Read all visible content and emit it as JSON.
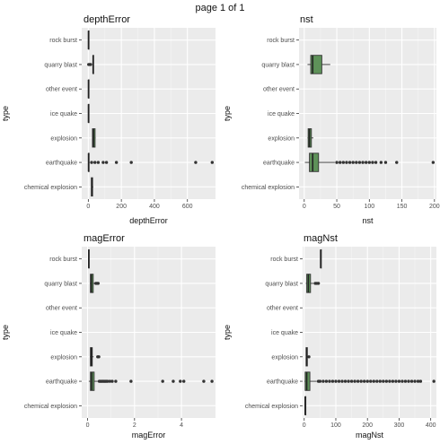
{
  "page_title": "page 1 of 1",
  "colors": {
    "box_fill": "#5e9259",
    "panel_bg": "#ebebeb",
    "grid": "#ffffff",
    "outlier": "#333333"
  },
  "chart_data": [
    {
      "type": "box",
      "orientation": "horizontal",
      "title": "depthError",
      "xlabel": "depthError",
      "ylabel": "type",
      "xlim": [
        -40,
        770
      ],
      "xticks": [
        0,
        200,
        400,
        600
      ],
      "categories": [
        "chemical explosion",
        "earthquake",
        "explosion",
        "ice quake",
        "other event",
        "quarry blast",
        "rock burst"
      ],
      "boxes": [
        {
          "category": "chemical explosion",
          "min": 18,
          "q1": 18,
          "median": 22,
          "q3": 26,
          "max": 30,
          "outliers": []
        },
        {
          "category": "earthquake",
          "min": 0,
          "q1": 0.5,
          "median": 1.2,
          "q3": 3,
          "max": 8,
          "outliers": [
            20,
            40,
            60,
            90,
            110,
            170,
            260,
            650,
            750
          ]
        },
        {
          "category": "explosion",
          "min": 25,
          "q1": 25,
          "median": 31,
          "q3": 41,
          "max": 44,
          "outliers": []
        },
        {
          "category": "ice quake",
          "min": 0,
          "q1": 0,
          "median": 1,
          "q3": 2,
          "max": 6,
          "outliers": []
        },
        {
          "category": "other event",
          "min": 0,
          "q1": 0,
          "median": 1,
          "q3": 2,
          "max": 4,
          "outliers": []
        },
        {
          "category": "quarry blast",
          "min": 28,
          "q1": 28,
          "median": 29,
          "q3": 30,
          "max": 31,
          "outliers": [
            2,
            8,
            14
          ]
        },
        {
          "category": "rock burst",
          "min": 0,
          "q1": 0,
          "median": 1,
          "q3": 2,
          "max": 3,
          "outliers": []
        }
      ]
    },
    {
      "type": "box",
      "orientation": "horizontal",
      "title": "nst",
      "xlabel": "nst",
      "ylabel": "type",
      "xlim": [
        -8,
        203
      ],
      "xticks": [
        0,
        50,
        100,
        150,
        200
      ],
      "categories": [
        "chemical explosion",
        "earthquake",
        "explosion",
        "ice quake",
        "other event",
        "quarry blast",
        "rock burst"
      ],
      "boxes": [
        {
          "category": "chemical explosion",
          "min": null,
          "q1": null,
          "median": null,
          "q3": null,
          "max": null,
          "outliers": []
        },
        {
          "category": "earthquake",
          "min": 1,
          "q1": 8,
          "median": 13,
          "q3": 22,
          "max": 47,
          "outliers": [
            50,
            55,
            60,
            65,
            70,
            75,
            80,
            85,
            90,
            95,
            100,
            105,
            110,
            118,
            125,
            142,
            198
          ]
        },
        {
          "category": "explosion",
          "min": 5,
          "q1": 6,
          "median": 8,
          "q3": 11,
          "max": 14,
          "outliers": []
        },
        {
          "category": "ice quake",
          "min": null,
          "q1": null,
          "median": null,
          "q3": null,
          "max": null,
          "outliers": []
        },
        {
          "category": "other event",
          "min": null,
          "q1": null,
          "median": null,
          "q3": null,
          "max": null,
          "outliers": []
        },
        {
          "category": "quarry blast",
          "min": 5,
          "q1": 10,
          "median": 13,
          "q3": 27,
          "max": 40,
          "outliers": []
        },
        {
          "category": "rock burst",
          "min": null,
          "q1": null,
          "median": null,
          "q3": null,
          "max": null,
          "outliers": []
        }
      ]
    },
    {
      "type": "box",
      "orientation": "horizontal",
      "title": "magError",
      "xlabel": "magError",
      "ylabel": "type",
      "xlim": [
        -0.25,
        5.45
      ],
      "xticks": [
        0,
        2,
        4
      ],
      "categories": [
        "chemical explosion",
        "earthquake",
        "explosion",
        "ice quake",
        "other event",
        "quarry blast",
        "rock burst"
      ],
      "boxes": [
        {
          "category": "chemical explosion",
          "min": null,
          "q1": null,
          "median": null,
          "q3": null,
          "max": null,
          "outliers": []
        },
        {
          "category": "earthquake",
          "min": 0.05,
          "q1": 0.12,
          "median": 0.18,
          "q3": 0.28,
          "max": 0.45,
          "outliers": [
            0.5,
            0.55,
            0.6,
            0.65,
            0.7,
            0.75,
            0.8,
            0.85,
            0.95,
            1.05,
            1.2,
            1.85,
            3.2,
            3.65,
            3.95,
            4.1,
            4.95,
            5.3
          ]
        },
        {
          "category": "explosion",
          "min": 0.1,
          "q1": 0.12,
          "median": 0.16,
          "q3": 0.2,
          "max": 0.26,
          "outliers": [
            0.43,
            0.48
          ]
        },
        {
          "category": "ice quake",
          "min": null,
          "q1": null,
          "median": null,
          "q3": null,
          "max": null,
          "outliers": []
        },
        {
          "category": "other event",
          "min": null,
          "q1": null,
          "median": null,
          "q3": null,
          "max": null,
          "outliers": []
        },
        {
          "category": "quarry blast",
          "min": 0.1,
          "q1": 0.12,
          "median": 0.16,
          "q3": 0.24,
          "max": 0.3,
          "outliers": [
            0.35,
            0.4,
            0.45
          ]
        },
        {
          "category": "rock burst",
          "min": 0.02,
          "q1": 0.04,
          "median": 0.05,
          "q3": 0.06,
          "max": 0.07,
          "outliers": []
        }
      ]
    },
    {
      "type": "box",
      "orientation": "horizontal",
      "title": "magNst",
      "xlabel": "magNst",
      "ylabel": "type",
      "xlim": [
        -5,
        418
      ],
      "xticks": [
        0,
        100,
        200,
        300,
        400
      ],
      "categories": [
        "chemical explosion",
        "earthquake",
        "explosion",
        "ice quake",
        "other event",
        "quarry blast",
        "rock burst"
      ],
      "boxes": [
        {
          "category": "chemical explosion",
          "min": 3,
          "q1": 3,
          "median": 3,
          "q3": 3,
          "max": 3,
          "outliers": []
        },
        {
          "category": "earthquake",
          "min": 1,
          "q1": 3,
          "median": 8,
          "q3": 18,
          "max": 40,
          "outliers": [
            45,
            50,
            60,
            70,
            80,
            90,
            100,
            110,
            120,
            130,
            140,
            150,
            160,
            170,
            180,
            190,
            200,
            210,
            220,
            230,
            240,
            250,
            260,
            270,
            280,
            290,
            300,
            310,
            320,
            330,
            340,
            350,
            360,
            368,
            410
          ]
        },
        {
          "category": "explosion",
          "min": 5,
          "q1": 6,
          "median": 8,
          "q3": 10,
          "max": 12,
          "outliers": [
            15
          ]
        },
        {
          "category": "ice quake",
          "min": null,
          "q1": null,
          "median": null,
          "q3": null,
          "max": null,
          "outliers": []
        },
        {
          "category": "other event",
          "min": null,
          "q1": null,
          "median": null,
          "q3": null,
          "max": null,
          "outliers": []
        },
        {
          "category": "quarry blast",
          "min": 5,
          "q1": 8,
          "median": 13,
          "q3": 20,
          "max": 30,
          "outliers": [
            35,
            40,
            45
          ]
        },
        {
          "category": "rock burst",
          "min": 52,
          "q1": 52,
          "median": 52,
          "q3": 52,
          "max": 52,
          "outliers": []
        }
      ]
    }
  ]
}
